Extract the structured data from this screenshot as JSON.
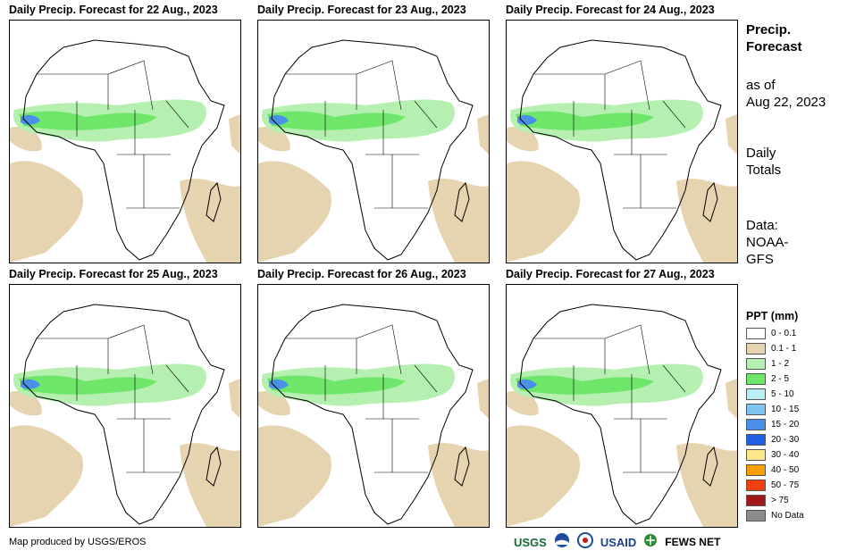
{
  "panels": [
    {
      "title": "Daily Precip. Forecast for 22 Aug., 2023"
    },
    {
      "title": "Daily Precip. Forecast for 23 Aug., 2023"
    },
    {
      "title": "Daily Precip. Forecast for 24 Aug., 2023"
    },
    {
      "title": "Daily Precip. Forecast for 25 Aug., 2023"
    },
    {
      "title": "Daily Precip. Forecast for 26 Aug., 2023"
    },
    {
      "title": "Daily Precip. Forecast for 27 Aug., 2023"
    }
  ],
  "sidebar": {
    "heading_line1": "Precip.",
    "heading_line2": "Forecast",
    "asof_line1": "as of",
    "asof_line2": "Aug 22, 2023",
    "totals_line1": "Daily",
    "totals_line2": "Totals",
    "data_line1": "Data:",
    "data_line2": "NOAA-",
    "data_line3": "GFS"
  },
  "legend": {
    "title": "PPT (mm)",
    "items": [
      {
        "label": "0 - 0.1",
        "color": "#ffffff"
      },
      {
        "label": "0.1 - 1",
        "color": "#e6d3b0"
      },
      {
        "label": "1 - 2",
        "color": "#b5f0b0"
      },
      {
        "label": "2 - 5",
        "color": "#6ee66a"
      },
      {
        "label": "5 - 10",
        "color": "#b8eef4"
      },
      {
        "label": "10 - 15",
        "color": "#7fc4f0"
      },
      {
        "label": "15 - 20",
        "color": "#4a8fe8"
      },
      {
        "label": "20 - 30",
        "color": "#1f5fe0"
      },
      {
        "label": "30 - 40",
        "color": "#fde68a"
      },
      {
        "label": "40 - 50",
        "color": "#f5a000"
      },
      {
        "label": "50 - 75",
        "color": "#f04010"
      },
      {
        "label": "> 75",
        "color": "#a01818"
      },
      {
        "label": "No Data",
        "color": "#8c8c8c"
      }
    ]
  },
  "footer": {
    "credit": "Map produced by USGS/EROS",
    "logo_usgs": "USGS",
    "logo_usaid": "USAID",
    "logo_fews": "FEWS NET"
  }
}
